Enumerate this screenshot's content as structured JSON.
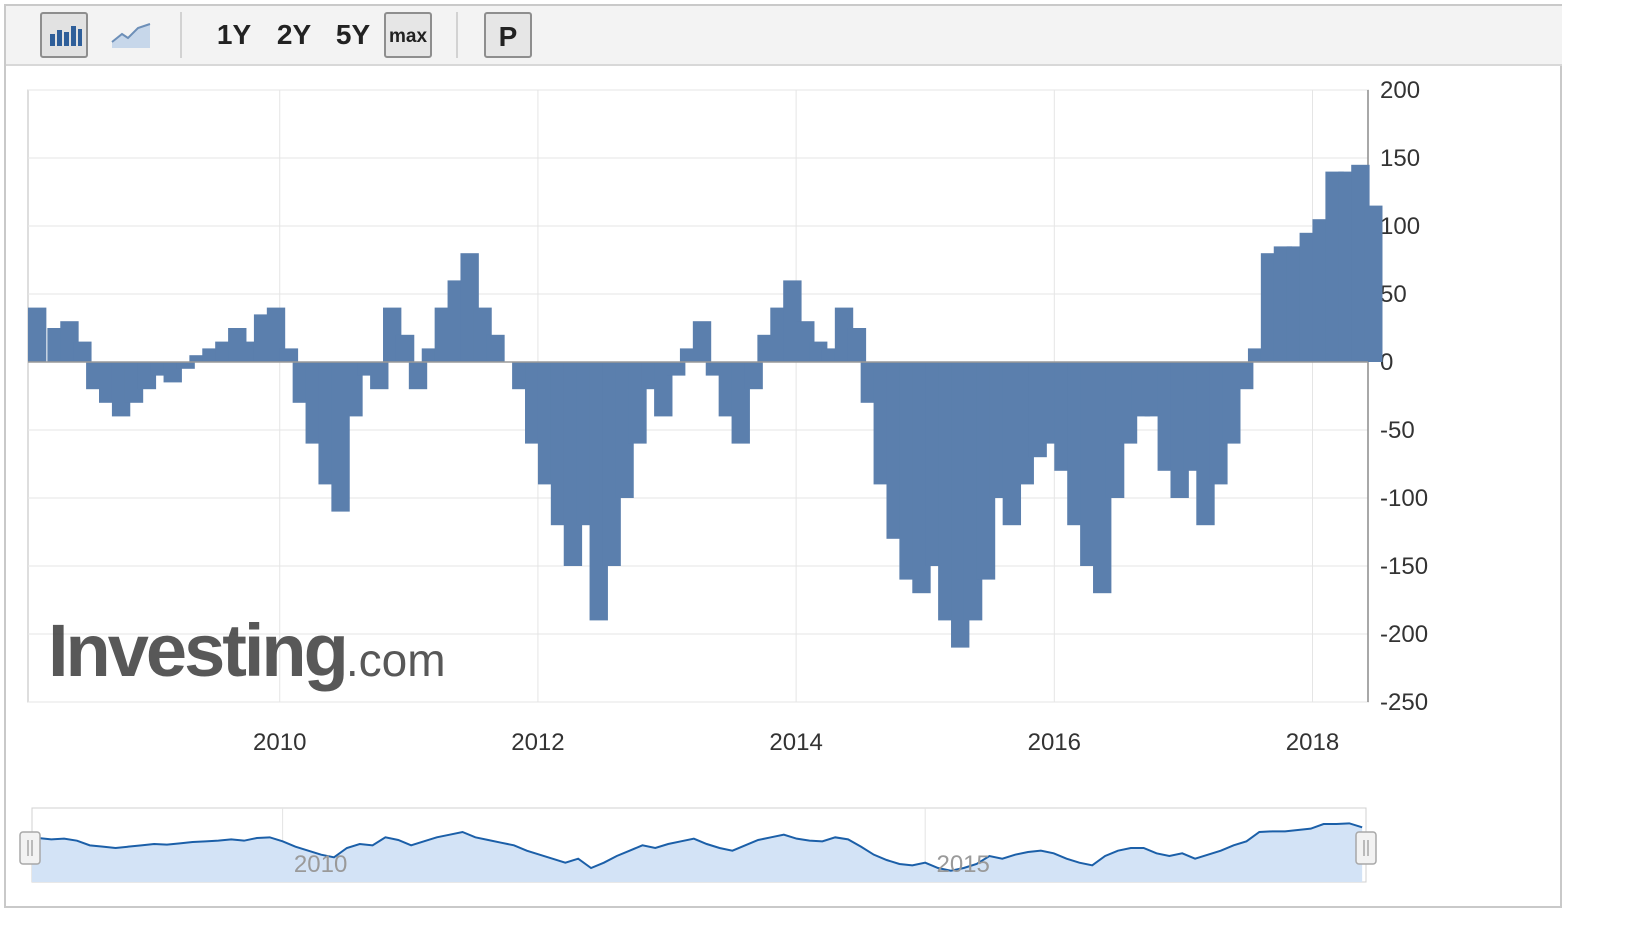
{
  "toolbar": {
    "bar_chart_icon": "bar-chart-icon",
    "line_chart_icon": "line-chart-icon",
    "range_1y": "1Y",
    "range_2y": "2Y",
    "range_5y": "5Y",
    "range_max": "max",
    "print_label": "P"
  },
  "watermark": {
    "brand": "Investing",
    "domain": ".com"
  },
  "colors": {
    "bar": "#5b7fad",
    "navigator_line": "#1b5fa8",
    "navigator_fill": "#d3e3f6",
    "grid": "#e5e5e5"
  },
  "chart_data": {
    "type": "bar",
    "title": "",
    "xlabel": "",
    "ylabel": "",
    "x_range": [
      2008.05,
      2018.43
    ],
    "ylim": [
      -250,
      200
    ],
    "y_ticks": [
      200,
      150,
      100,
      50,
      0,
      -50,
      -100,
      -150,
      -200,
      -250
    ],
    "x_ticks": [
      2010,
      2012,
      2014,
      2016,
      2018
    ],
    "x_tick_labels": [
      "2010",
      "2012",
      "2014",
      "2016",
      "2018"
    ],
    "grid": true,
    "series": [
      {
        "x": [
          2008.05,
          2008.2,
          2008.3,
          2008.4,
          2008.5,
          2008.6,
          2008.7,
          2008.8,
          2008.9,
          2009.0,
          2009.1,
          2009.2,
          2009.3,
          2009.4,
          2009.5,
          2009.6,
          2009.7,
          2009.8,
          2009.9,
          2010.0,
          2010.1,
          2010.2,
          2010.3,
          2010.4,
          2010.5,
          2010.6,
          2010.7,
          2010.8,
          2010.9,
          2011.0,
          2011.1,
          2011.2,
          2011.3,
          2011.4,
          2011.5,
          2011.6,
          2011.7,
          2011.8,
          2011.9,
          2012.0,
          2012.1,
          2012.2,
          2012.3,
          2012.4,
          2012.5,
          2012.6,
          2012.7,
          2012.8,
          2012.9,
          2013.0,
          2013.1,
          2013.2,
          2013.3,
          2013.4,
          2013.5,
          2013.6,
          2013.7,
          2013.8,
          2013.9,
          2014.0,
          2014.1,
          2014.2,
          2014.3,
          2014.4,
          2014.5,
          2014.6,
          2014.7,
          2014.8,
          2014.9,
          2015.0,
          2015.1,
          2015.2,
          2015.3,
          2015.4,
          2015.5,
          2015.6,
          2015.7,
          2015.8,
          2015.9,
          2016.0,
          2016.1,
          2016.2,
          2016.3,
          2016.4,
          2016.5,
          2016.6,
          2016.7,
          2016.8,
          2016.9,
          2017.0,
          2017.1,
          2017.2,
          2017.3,
          2017.4,
          2017.5,
          2017.6,
          2017.7,
          2017.8,
          2017.9,
          2018.0,
          2018.1,
          2018.2,
          2018.3,
          2018.4
        ],
        "values": [
          40,
          25,
          30,
          15,
          -20,
          -30,
          -40,
          -30,
          -20,
          -10,
          -15,
          -5,
          5,
          10,
          15,
          25,
          15,
          35,
          40,
          10,
          -30,
          -60,
          -90,
          -110,
          -40,
          -10,
          -20,
          40,
          20,
          -20,
          10,
          40,
          60,
          80,
          40,
          20,
          0,
          -20,
          -60,
          -90,
          -120,
          -150,
          -120,
          -190,
          -150,
          -100,
          -60,
          -20,
          -40,
          -10,
          10,
          30,
          -10,
          -40,
          -60,
          -20,
          20,
          40,
          60,
          30,
          15,
          10,
          40,
          25,
          -30,
          -90,
          -130,
          -160,
          -170,
          -150,
          -190,
          -210,
          -190,
          -160,
          -100,
          -120,
          -90,
          -70,
          -60,
          -80,
          -120,
          -150,
          -170,
          -100,
          -60,
          -40,
          -40,
          -80,
          -100,
          -80,
          -120,
          -90,
          -60,
          -20,
          10,
          80,
          85,
          85,
          95,
          105,
          140,
          140,
          145,
          115
        ]
      }
    ],
    "navigator": {
      "x_tick_labels": [
        "2010",
        "2015"
      ]
    }
  }
}
